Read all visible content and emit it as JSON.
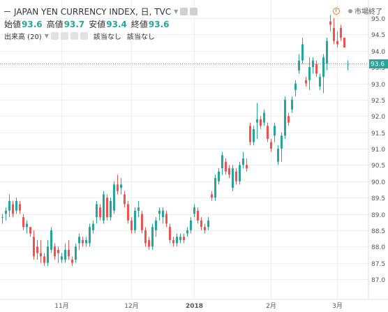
{
  "header": {
    "title": "JAPAN YEN CURRENCY INDEX, 日, TVC",
    "market_status": "市場終了",
    "ohlc": [
      {
        "label": "始値",
        "value": "93.6"
      },
      {
        "label": "高値",
        "value": "93.7"
      },
      {
        "label": "安値",
        "value": "93.4"
      },
      {
        "label": "終値",
        "value": "93.6"
      }
    ],
    "volume_label": "出来高 (20)",
    "volume_na_1": "該当なし",
    "volume_na_2": "該当なし"
  },
  "colors": {
    "up": "#26a69a",
    "down": "#ef5350",
    "price_line": "#26a69a",
    "grid": "#eeeeee",
    "axis_text": "#555555"
  },
  "price_label": "93.6",
  "chart_data": {
    "type": "candlestick",
    "title": "JAPAN YEN CURRENCY INDEX",
    "interval": "日",
    "source": "TVC",
    "y_ticks": [
      "87.0",
      "87.5",
      "88.0",
      "88.5",
      "89.0",
      "89.5",
      "90.0",
      "90.5",
      "91.0",
      "91.5",
      "92.0",
      "92.5",
      "93.0",
      "93.5",
      "94.0",
      "94.5",
      "95.0"
    ],
    "x_ticks": [
      {
        "label": "11月",
        "index": 17
      },
      {
        "label": "12月",
        "index": 37
      },
      {
        "label": "2018",
        "index": 55
      },
      {
        "label": "2月",
        "index": 77
      },
      {
        "label": "3月",
        "index": 96
      }
    ],
    "ylim": [
      86.9,
      95.3
    ],
    "last_price": 93.6,
    "grid": true,
    "candles": [
      [
        88.9,
        89.0,
        88.7,
        88.9
      ],
      [
        89.0,
        89.2,
        88.8,
        89.1
      ],
      [
        89.1,
        89.6,
        88.9,
        89.4
      ],
      [
        89.3,
        89.4,
        88.9,
        89.0
      ],
      [
        89.1,
        89.5,
        89.0,
        89.4
      ],
      [
        89.3,
        89.4,
        89.0,
        89.1
      ],
      [
        88.9,
        89.0,
        88.5,
        88.6
      ],
      [
        88.6,
        88.8,
        88.4,
        88.7
      ],
      [
        88.6,
        88.6,
        88.3,
        88.4
      ],
      [
        88.3,
        88.5,
        87.6,
        87.7
      ],
      [
        88.0,
        88.2,
        87.6,
        87.8
      ],
      [
        87.8,
        88.2,
        87.5,
        87.7
      ],
      [
        87.7,
        87.8,
        87.4,
        87.5
      ],
      [
        87.5,
        88.2,
        87.4,
        88.0
      ],
      [
        87.9,
        88.6,
        87.8,
        88.5
      ],
      [
        88.0,
        88.1,
        87.6,
        87.7
      ],
      [
        87.9,
        88.0,
        87.5,
        87.8
      ],
      [
        87.6,
        87.8,
        87.5,
        87.7
      ],
      [
        87.6,
        88.1,
        87.5,
        87.9
      ],
      [
        87.9,
        88.2,
        87.6,
        87.7
      ],
      [
        87.6,
        87.7,
        87.4,
        87.5
      ],
      [
        87.6,
        88.1,
        87.5,
        88.0
      ],
      [
        88.1,
        88.4,
        87.9,
        88.3
      ],
      [
        88.2,
        88.3,
        88.0,
        88.1
      ],
      [
        88.1,
        88.3,
        88.0,
        88.2
      ],
      [
        88.1,
        88.7,
        88.0,
        88.6
      ],
      [
        88.5,
        88.8,
        88.4,
        88.7
      ],
      [
        88.9,
        89.4,
        88.7,
        89.3
      ],
      [
        89.2,
        89.3,
        88.8,
        88.9
      ],
      [
        88.8,
        89.7,
        88.7,
        89.6
      ],
      [
        89.5,
        89.6,
        88.8,
        88.9
      ],
      [
        88.9,
        89.5,
        88.8,
        89.4
      ],
      [
        89.1,
        90.0,
        89.0,
        89.9
      ],
      [
        89.9,
        90.2,
        89.6,
        89.7
      ],
      [
        89.8,
        90.1,
        89.6,
        89.9
      ],
      [
        89.6,
        89.7,
        89.2,
        89.3
      ],
      [
        89.3,
        89.4,
        88.7,
        88.8
      ],
      [
        88.8,
        88.9,
        88.4,
        88.5
      ],
      [
        88.5,
        89.2,
        88.4,
        89.1
      ],
      [
        89.1,
        89.4,
        88.9,
        89.2
      ],
      [
        89.0,
        89.1,
        88.4,
        88.5
      ],
      [
        88.5,
        88.6,
        88.0,
        88.1
      ],
      [
        88.2,
        88.3,
        87.9,
        88.0
      ],
      [
        88.0,
        88.7,
        87.9,
        88.6
      ],
      [
        88.5,
        88.9,
        88.3,
        88.8
      ],
      [
        89.0,
        89.2,
        88.8,
        89.1
      ],
      [
        88.9,
        89.2,
        88.7,
        89.1
      ],
      [
        89.0,
        89.1,
        88.6,
        88.7
      ],
      [
        88.6,
        88.7,
        88.1,
        88.2
      ],
      [
        88.2,
        88.3,
        88.0,
        88.1
      ],
      [
        88.1,
        88.4,
        88.0,
        88.3
      ],
      [
        88.2,
        88.4,
        88.1,
        88.3
      ],
      [
        88.3,
        88.4,
        88.1,
        88.2
      ],
      [
        88.4,
        88.6,
        88.3,
        88.5
      ],
      [
        88.5,
        88.9,
        88.4,
        88.8
      ],
      [
        89.0,
        89.3,
        88.9,
        89.2
      ],
      [
        89.1,
        89.2,
        88.7,
        88.8
      ],
      [
        88.8,
        88.9,
        88.5,
        88.6
      ],
      [
        88.6,
        88.7,
        88.4,
        88.5
      ],
      [
        88.6,
        88.9,
        88.5,
        88.8
      ],
      [
        89.6,
        89.7,
        89.4,
        89.5
      ],
      [
        89.5,
        90.2,
        89.4,
        90.1
      ],
      [
        90.0,
        90.4,
        89.9,
        90.3
      ],
      [
        90.4,
        90.9,
        90.2,
        90.8
      ],
      [
        90.6,
        90.7,
        90.2,
        90.3
      ],
      [
        90.4,
        90.5,
        90.1,
        90.2
      ],
      [
        89.8,
        90.5,
        89.7,
        90.4
      ],
      [
        90.3,
        90.4,
        89.9,
        90.0
      ],
      [
        90.0,
        90.6,
        89.9,
        90.5
      ],
      [
        90.5,
        90.9,
        90.4,
        90.7
      ],
      [
        90.5,
        90.7,
        90.3,
        90.4
      ],
      [
        91.7,
        91.8,
        91.1,
        91.2
      ],
      [
        91.2,
        91.7,
        91.1,
        91.6
      ],
      [
        91.8,
        92.4,
        91.3,
        91.9
      ],
      [
        91.9,
        92.0,
        91.6,
        91.7
      ],
      [
        91.8,
        92.2,
        91.7,
        92.1
      ],
      [
        91.7,
        91.8,
        91.2,
        91.3
      ],
      [
        91.2,
        91.3,
        90.9,
        91.0
      ],
      [
        91.4,
        91.8,
        91.2,
        91.7
      ],
      [
        90.6,
        91.1,
        90.5,
        91.0
      ],
      [
        91.0,
        91.5,
        90.6,
        91.4
      ],
      [
        91.4,
        92.6,
        91.3,
        92.5
      ],
      [
        92.0,
        92.1,
        91.7,
        91.8
      ],
      [
        92.2,
        92.6,
        92.1,
        92.5
      ],
      [
        92.8,
        93.1,
        92.6,
        93.0
      ],
      [
        93.4,
        93.9,
        93.3,
        93.7
      ],
      [
        93.7,
        94.4,
        93.6,
        94.2
      ],
      [
        93.1,
        93.2,
        92.9,
        93.0
      ],
      [
        93.1,
        93.8,
        92.8,
        93.5
      ],
      [
        93.5,
        93.8,
        93.3,
        93.7
      ],
      [
        93.6,
        93.7,
        93.2,
        93.3
      ],
      [
        92.9,
        93.3,
        92.8,
        93.2
      ],
      [
        93.2,
        93.9,
        92.7,
        93.8
      ],
      [
        93.6,
        94.4,
        93.4,
        94.3
      ],
      [
        94.9,
        95.1,
        94.6,
        94.8
      ],
      [
        94.7,
        95.0,
        94.2,
        94.3
      ],
      [
        94.3,
        94.6,
        94.1,
        94.2
      ],
      [
        94.7,
        94.8,
        94.3,
        94.4
      ],
      [
        94.4,
        94.4,
        94.1,
        94.1
      ],
      [
        93.6,
        93.7,
        93.4,
        93.6
      ]
    ]
  }
}
